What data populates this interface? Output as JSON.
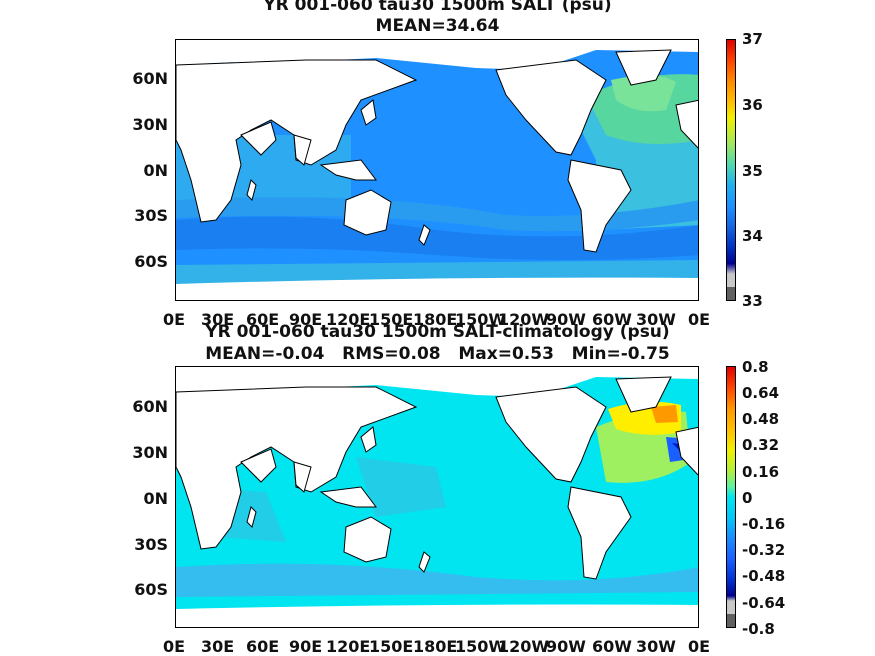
{
  "panels": [
    {
      "title_line1": "YR 001-060 tau30 1500m SALT (psu)",
      "title_line2": "MEAN=34.64",
      "lat_ticks": [
        "60N",
        "30N",
        "0N",
        "30S",
        "60S"
      ],
      "lon_ticks": [
        "0E",
        "30E",
        "60E",
        "90E",
        "120E",
        "150E",
        "180E",
        "150W",
        "120W",
        "90W",
        "60W",
        "30W",
        "0E"
      ],
      "colorbar": {
        "labels": [
          "37",
          "36",
          "35",
          "34",
          "33"
        ],
        "range": [
          33,
          37
        ]
      },
      "colors": {
        "ocean_main": "#1e90ff",
        "ocean_light": "#2eaaf0",
        "southern_band": "#1a7ff0",
        "north_atlantic": "#58d6a0",
        "atlantic": "#3cc0e0",
        "land": "#ffffff",
        "ice_edge": "#00e8f0"
      }
    },
    {
      "title_line1": "YR 001-060 tau30 1500m SALT-climatology (psu)",
      "title_line2": "MEAN=-0.04   RMS=0.08   Max=0.53   Min=-0.75",
      "lat_ticks": [
        "60N",
        "30N",
        "0N",
        "30S",
        "60S"
      ],
      "lon_ticks": [
        "0E",
        "30E",
        "60E",
        "90E",
        "120E",
        "150E",
        "180E",
        "150W",
        "120W",
        "90W",
        "60W",
        "30W",
        "0E"
      ],
      "colorbar": {
        "labels": [
          "0.8",
          "0.64",
          "0.48",
          "0.32",
          "0.16",
          "0",
          "-0.16",
          "-0.32",
          "-0.48",
          "-0.64",
          "-0.8"
        ],
        "range": [
          -0.8,
          0.8
        ]
      },
      "colors": {
        "ocean_main": "#00e5f0",
        "anomaly_pos": "#ffee00",
        "anomaly_orange": "#ff9900",
        "anomaly_neg": "#1a5fff",
        "land": "#ffffff"
      }
    }
  ]
}
